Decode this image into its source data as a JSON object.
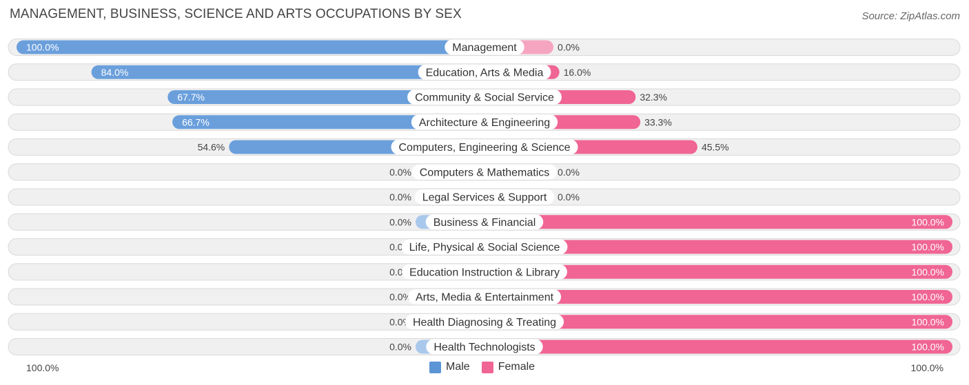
{
  "title": "MANAGEMENT, BUSINESS, SCIENCE AND ARTS OCCUPATIONS BY SEX",
  "source": "Source: ZipAtlas.com",
  "colors": {
    "male": "#6a9fdc",
    "male_light": "#a9c8ec",
    "female": "#f06593",
    "female_light": "#f6a5c0"
  },
  "axis": {
    "left_label": "100.0%",
    "right_label": "100.0%"
  },
  "legend": [
    {
      "label": "Male",
      "color": "#5b95d6"
    },
    {
      "label": "Female",
      "color": "#f06593"
    }
  ],
  "chart_data": {
    "type": "bar",
    "orientation": "horizontal-diverging",
    "title": "MANAGEMENT, BUSINESS, SCIENCE AND ARTS OCCUPATIONS BY SEX",
    "xlim": [
      -100,
      100
    ],
    "legend_position": "bottom-center",
    "categories": [
      "Management",
      "Education, Arts & Media",
      "Community & Social Service",
      "Architecture & Engineering",
      "Computers, Engineering & Science",
      "Computers & Mathematics",
      "Legal Services & Support",
      "Business & Financial",
      "Life, Physical & Social Science",
      "Education Instruction & Library",
      "Arts, Media & Entertainment",
      "Health Diagnosing & Treating",
      "Health Technologists"
    ],
    "series": [
      {
        "name": "Male",
        "values": [
          100.0,
          84.0,
          67.7,
          66.7,
          54.6,
          0.0,
          0.0,
          0.0,
          0.0,
          0.0,
          0.0,
          0.0,
          0.0
        ],
        "labels": [
          "100.0%",
          "84.0%",
          "67.7%",
          "66.7%",
          "54.6%",
          "0.0%",
          "0.0%",
          "0.0%",
          "0.0%",
          "0.0%",
          "0.0%",
          "0.0%",
          "0.0%"
        ]
      },
      {
        "name": "Female",
        "values": [
          0.0,
          16.0,
          32.3,
          33.3,
          45.5,
          0.0,
          0.0,
          100.0,
          100.0,
          100.0,
          100.0,
          100.0,
          100.0
        ],
        "labels": [
          "0.0%",
          "16.0%",
          "32.3%",
          "33.3%",
          "45.5%",
          "0.0%",
          "0.0%",
          "100.0%",
          "100.0%",
          "100.0%",
          "100.0%",
          "100.0%",
          "100.0%"
        ]
      }
    ]
  }
}
